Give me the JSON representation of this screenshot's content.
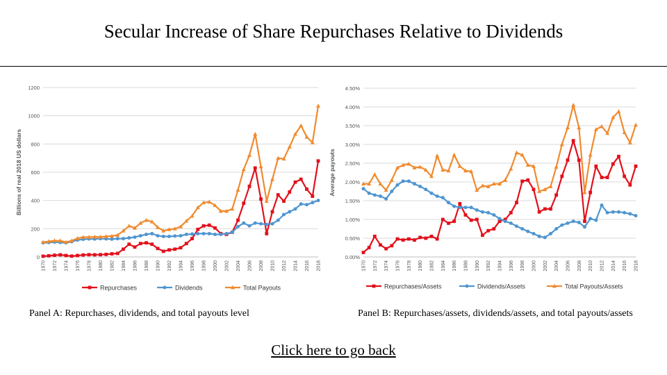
{
  "title": "Secular Increase of Share Repurchases Relative to Dividends",
  "back_link": "Click here to go back",
  "colors": {
    "repurchases": "#e2101b",
    "dividends": "#4e95d0",
    "total": "#f08a2e",
    "grid": "#d9d9d9",
    "axis_text": "#555555"
  },
  "chart_data": [
    {
      "id": "panelA",
      "type": "line",
      "caption": "Panel A: Repurchases, dividends, and total payouts level",
      "ylabel": "Billions of real 2018 US dollars",
      "xlabel": "",
      "ylim": [
        0,
        1200
      ],
      "yticks": [
        0,
        200,
        400,
        600,
        800,
        1000,
        1200
      ],
      "ytick_labels": [
        "0",
        "200",
        "400",
        "600",
        "800",
        "1000",
        "1200"
      ],
      "x": [
        1970,
        1971,
        1972,
        1973,
        1974,
        1975,
        1976,
        1977,
        1978,
        1979,
        1980,
        1981,
        1982,
        1983,
        1984,
        1985,
        1986,
        1987,
        1988,
        1989,
        1990,
        1991,
        1992,
        1993,
        1994,
        1995,
        1996,
        1997,
        1998,
        1999,
        2000,
        2001,
        2002,
        2003,
        2004,
        2005,
        2006,
        2007,
        2008,
        2009,
        2010,
        2011,
        2012,
        2013,
        2014,
        2015,
        2016,
        2017,
        2018
      ],
      "xtick_labels": [
        "1970",
        "1972",
        "1974",
        "1976",
        "1978",
        "1980",
        "1982",
        "1984",
        "1986",
        "1988",
        "1990",
        "1992",
        "1994",
        "1996",
        "1998",
        "2000",
        "2002",
        "2004",
        "2006",
        "2008",
        "2010",
        "2012",
        "2014",
        "2016",
        "2018"
      ],
      "legend": [
        "Repurchases",
        "Dividends",
        "Total Payouts"
      ],
      "series": [
        {
          "name": "Repurchases",
          "marker": "square",
          "values": [
            5,
            8,
            12,
            15,
            10,
            6,
            10,
            14,
            16,
            15,
            16,
            18,
            22,
            25,
            55,
            90,
            70,
            95,
            100,
            90,
            60,
            40,
            50,
            55,
            65,
            95,
            130,
            195,
            220,
            225,
            205,
            165,
            160,
            175,
            260,
            380,
            500,
            630,
            410,
            165,
            320,
            440,
            395,
            460,
            530,
            550,
            480,
            430,
            680
          ]
        },
        {
          "name": "Dividends",
          "marker": "circle",
          "values": [
            100,
            102,
            105,
            103,
            100,
            108,
            120,
            125,
            128,
            127,
            130,
            128,
            126,
            130,
            130,
            135,
            140,
            150,
            160,
            165,
            150,
            145,
            145,
            148,
            150,
            160,
            162,
            165,
            165,
            165,
            160,
            160,
            165,
            175,
            215,
            240,
            220,
            240,
            235,
            230,
            235,
            260,
            300,
            320,
            340,
            375,
            370,
            385,
            400
          ]
        },
        {
          "name": "Total Payouts",
          "marker": "triangle",
          "values": [
            105,
            110,
            115,
            115,
            105,
            115,
            132,
            140,
            140,
            142,
            142,
            145,
            148,
            155,
            185,
            220,
            205,
            240,
            260,
            250,
            210,
            185,
            195,
            200,
            215,
            255,
            290,
            350,
            385,
            390,
            365,
            325,
            325,
            340,
            475,
            620,
            720,
            870,
            640,
            395,
            550,
            700,
            695,
            780,
            870,
            930,
            850,
            810,
            1070
          ]
        }
      ]
    },
    {
      "id": "panelB",
      "type": "line",
      "caption": "Panel B: Repurchases/assets, dividends/assets, and total payouts/assets",
      "ylabel": "Average payouts",
      "xlabel": "",
      "ylim": [
        0,
        4.5
      ],
      "yticks": [
        0,
        0.5,
        1.0,
        1.5,
        2.0,
        2.5,
        3.0,
        3.5,
        4.0,
        4.5
      ],
      "ytick_labels": [
        "0.00%",
        "0.50%",
        "1.00%",
        "1.50%",
        "2.00%",
        "2.50%",
        "3.00%",
        "3.50%",
        "4.00%",
        "4.50%"
      ],
      "x": [
        1970,
        1971,
        1972,
        1973,
        1974,
        1975,
        1976,
        1977,
        1978,
        1979,
        1980,
        1981,
        1982,
        1983,
        1984,
        1985,
        1986,
        1987,
        1988,
        1989,
        1990,
        1991,
        1992,
        1993,
        1994,
        1995,
        1996,
        1997,
        1998,
        1999,
        2000,
        2001,
        2002,
        2003,
        2004,
        2005,
        2006,
        2007,
        2008,
        2009,
        2010,
        2011,
        2012,
        2013,
        2014,
        2015,
        2016,
        2017,
        2018
      ],
      "xtick_labels": [
        "1970",
        "1972",
        "1974",
        "1976",
        "1978",
        "1980",
        "1982",
        "1984",
        "1986",
        "1988",
        "1990",
        "1992",
        "1994",
        "1996",
        "1998",
        "2000",
        "2002",
        "2004",
        "2006",
        "2008",
        "2010",
        "2012",
        "2014",
        "2016",
        "2018"
      ],
      "legend": [
        "Repurchases/Assets",
        "Dividends/Assets",
        "Total Payouts/Assets"
      ],
      "series": [
        {
          "name": "Repurchases/Assets",
          "marker": "square",
          "values": [
            0.12,
            0.25,
            0.55,
            0.32,
            0.22,
            0.3,
            0.48,
            0.45,
            0.48,
            0.45,
            0.52,
            0.5,
            0.55,
            0.48,
            1.0,
            0.9,
            0.95,
            1.42,
            1.12,
            0.98,
            1.0,
            0.58,
            0.7,
            0.75,
            0.95,
            1.0,
            1.18,
            1.45,
            2.02,
            2.05,
            1.8,
            1.2,
            1.28,
            1.28,
            1.65,
            2.15,
            2.58,
            3.1,
            2.58,
            0.95,
            1.72,
            2.42,
            2.12,
            2.12,
            2.48,
            2.68,
            2.15,
            1.92,
            2.42
          ]
        },
        {
          "name": "Dividends/Assets",
          "marker": "circle",
          "values": [
            1.82,
            1.7,
            1.65,
            1.62,
            1.55,
            1.75,
            1.92,
            2.02,
            2.02,
            1.95,
            1.88,
            1.8,
            1.7,
            1.62,
            1.58,
            1.45,
            1.35,
            1.32,
            1.32,
            1.32,
            1.25,
            1.2,
            1.18,
            1.12,
            1.02,
            0.95,
            0.9,
            0.82,
            0.75,
            0.68,
            0.62,
            0.55,
            0.52,
            0.62,
            0.75,
            0.85,
            0.9,
            0.95,
            0.92,
            0.8,
            1.02,
            0.98,
            1.38,
            1.18,
            1.2,
            1.2,
            1.18,
            1.15,
            1.1
          ]
        },
        {
          "name": "Total Payouts/Assets",
          "marker": "triangle",
          "values": [
            1.95,
            1.95,
            2.2,
            1.95,
            1.78,
            2.05,
            2.38,
            2.45,
            2.48,
            2.38,
            2.4,
            2.32,
            2.15,
            2.7,
            2.32,
            2.3,
            2.72,
            2.42,
            2.3,
            2.28,
            1.78,
            1.9,
            1.88,
            1.95,
            1.95,
            2.05,
            2.35,
            2.78,
            2.72,
            2.45,
            2.42,
            1.75,
            1.8,
            1.88,
            2.4,
            3.0,
            3.45,
            4.05,
            3.45,
            1.72,
            2.72,
            3.4,
            3.48,
            3.3,
            3.72,
            3.88,
            3.32,
            3.05,
            3.52
          ]
        }
      ]
    }
  ]
}
